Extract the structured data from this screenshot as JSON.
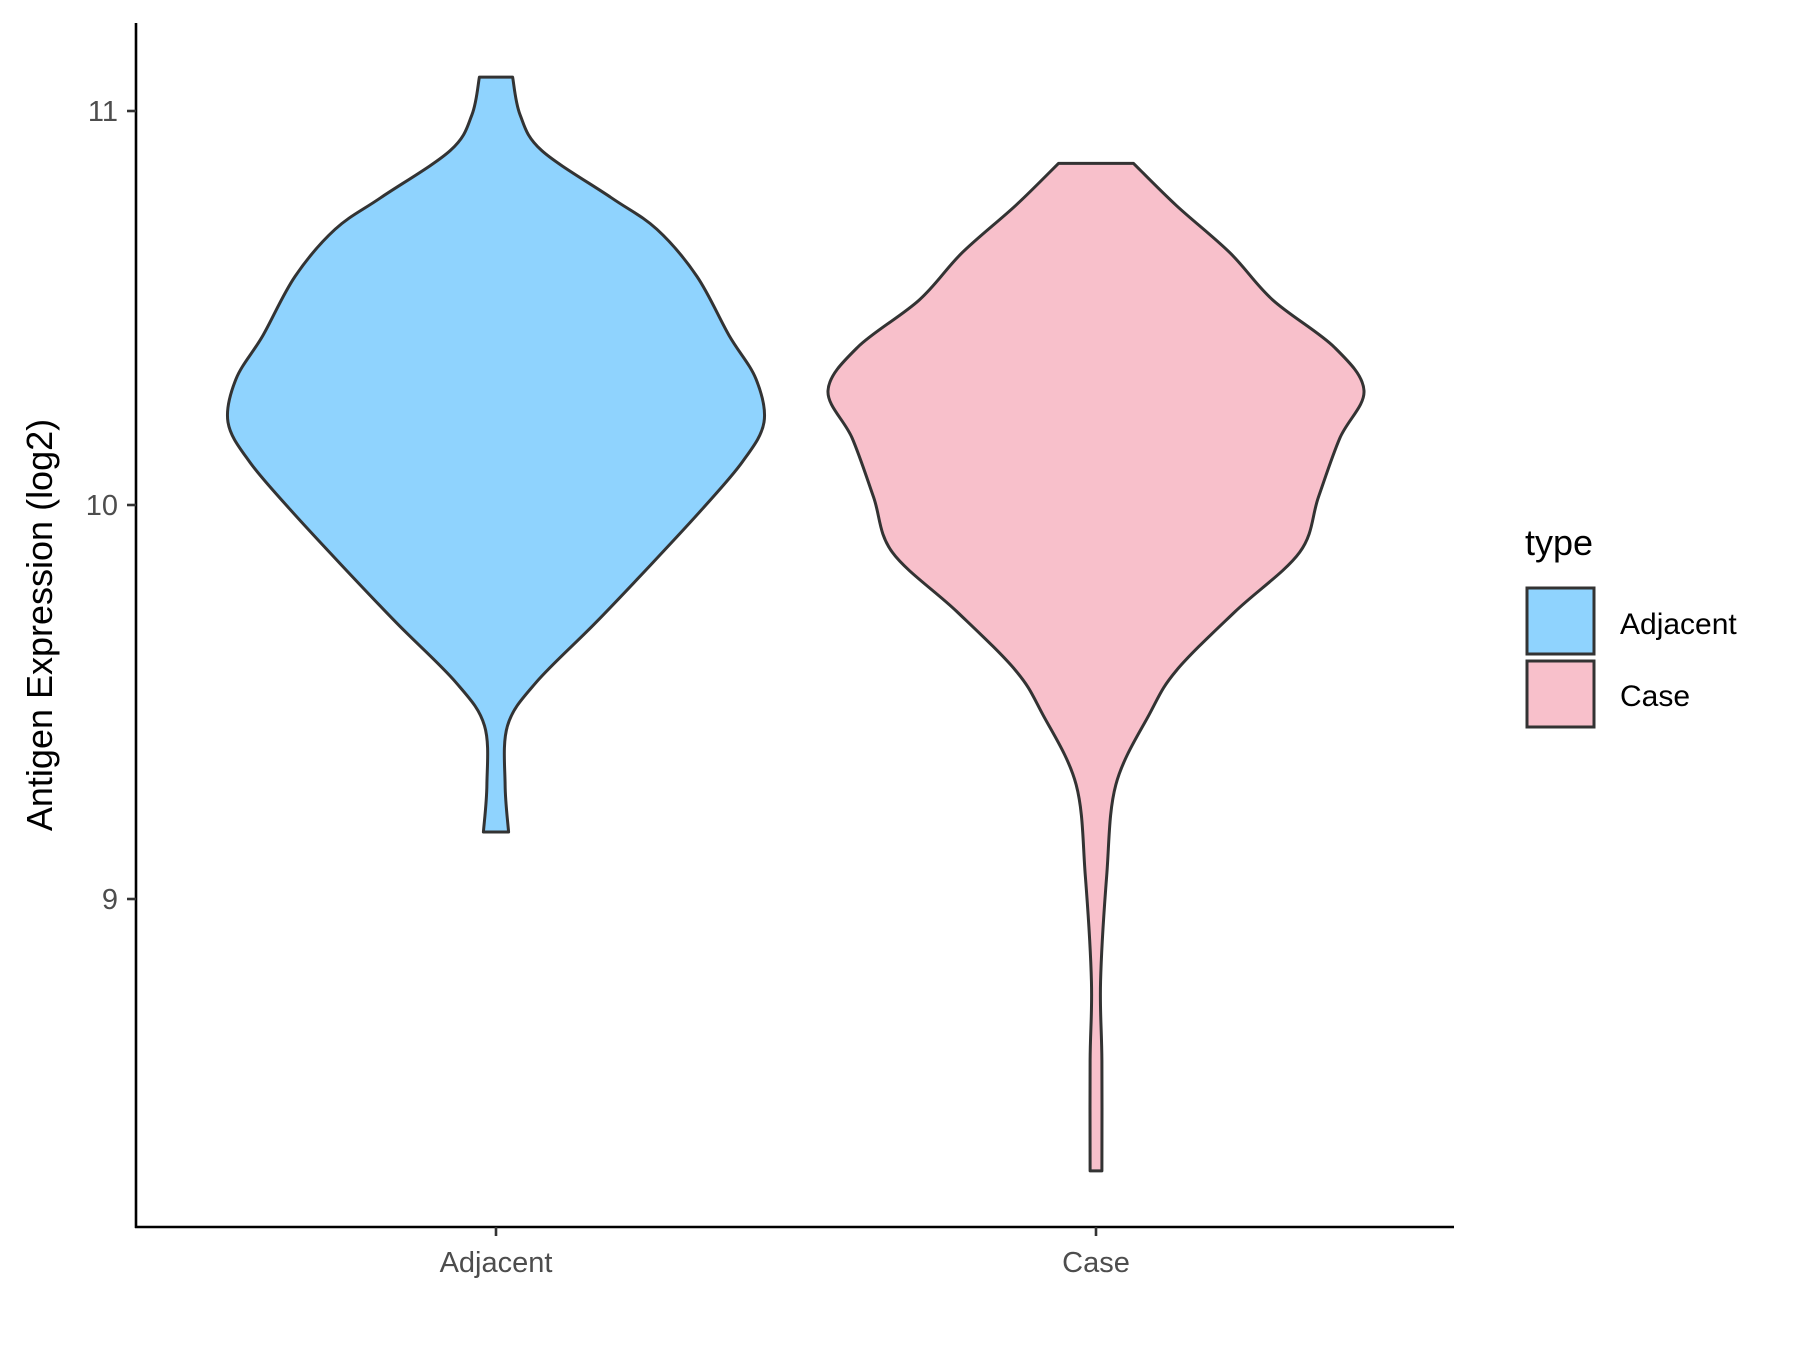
{
  "chart_data": {
    "type": "violin",
    "title": "",
    "xlabel": "",
    "ylabel": "Antigen Expression (log2)",
    "ylim": [
      8.17,
      11.22
    ],
    "yticks": [
      9,
      10,
      11
    ],
    "ytick_labels": [
      "9",
      "10",
      "11"
    ],
    "categories": [
      "Adjacent",
      "Case"
    ],
    "grid": false,
    "legend": {
      "title": "type",
      "placement": "right",
      "entries": [
        "Adjacent",
        "Case"
      ]
    },
    "colors": {
      "Adjacent": "#8FD3FE",
      "Case": "#F8C0CB",
      "outline": "#333333"
    },
    "series": [
      {
        "name": "Adjacent",
        "density_profile": [
          [
            9.17,
            0.047
          ],
          [
            9.29,
            0.034
          ],
          [
            9.44,
            0.043
          ],
          [
            9.55,
            0.15
          ],
          [
            9.7,
            0.37
          ],
          [
            9.85,
            0.58
          ],
          [
            9.99,
            0.77
          ],
          [
            10.11,
            0.92
          ],
          [
            10.21,
            1.0
          ],
          [
            10.32,
            0.97
          ],
          [
            10.43,
            0.87
          ],
          [
            10.58,
            0.75
          ],
          [
            10.7,
            0.6
          ],
          [
            10.78,
            0.43
          ],
          [
            10.9,
            0.17
          ],
          [
            10.99,
            0.09
          ],
          [
            11.086,
            0.062
          ]
        ]
      },
      {
        "name": "Case",
        "density_profile": [
          [
            8.31,
            0.022
          ],
          [
            8.59,
            0.022
          ],
          [
            8.79,
            0.017
          ],
          [
            9.06,
            0.04
          ],
          [
            9.29,
            0.074
          ],
          [
            9.47,
            0.2
          ],
          [
            9.58,
            0.3
          ],
          [
            9.73,
            0.52
          ],
          [
            9.88,
            0.76
          ],
          [
            10.02,
            0.83
          ],
          [
            10.17,
            0.91
          ],
          [
            10.29,
            1.0
          ],
          [
            10.4,
            0.89
          ],
          [
            10.52,
            0.66
          ],
          [
            10.64,
            0.5
          ],
          [
            10.76,
            0.3
          ],
          [
            10.867,
            0.14
          ]
        ]
      }
    ]
  }
}
